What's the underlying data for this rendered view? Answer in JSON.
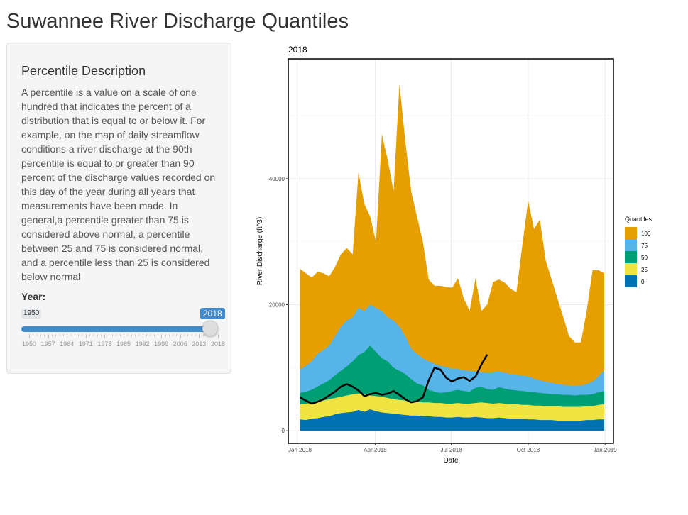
{
  "app": {
    "title": "Suwannee River Discharge Quantiles"
  },
  "sidebar": {
    "heading": "Percentile Description",
    "description": "A percentile is a value on a scale of one hundred that indicates the percent of a distribution that is equal to or below it. For example, on the map of daily streamflow conditions a river discharge at the 90th percentile is equal to or greater than 90 percent of the discharge values recorded on this day of the year during all years that measurements have been made. In general,a percentile greater than 75 is considered above normal, a percentile between 25 and 75 is considered normal, and a percentile less than 25 is considered below normal",
    "slider": {
      "label": "Year:",
      "min_label": "1950",
      "value_label": "2018",
      "ticks": [
        "1950",
        "1957",
        "1964",
        "1971",
        "1978",
        "1985",
        "1992",
        "1999",
        "2006",
        "2013",
        "2018"
      ]
    }
  },
  "chart_data": {
    "type": "area",
    "title": "2018",
    "xlabel": "Date",
    "ylabel": "River Discharge (ft^3)",
    "ylim": [
      -2000,
      59000
    ],
    "xlim": [
      "2017-12-18",
      "2019-01-11"
    ],
    "x_ticks": [
      "Jan 2018",
      "Apr 2018",
      "Jul 2018",
      "Oct 2018",
      "Jan 2019"
    ],
    "x_tick_dates": [
      "2018-01-01",
      "2018-04-01",
      "2018-07-01",
      "2018-10-01",
      "2019-01-01"
    ],
    "y_ticks": [
      0,
      20000,
      40000
    ],
    "y_tick_labels": [
      "0",
      "20000",
      "40000"
    ],
    "grid": true,
    "legend_title": "Quantiles",
    "legend_position": "right",
    "x": [
      "2018-01-01",
      "2018-01-08",
      "2018-01-15",
      "2018-01-22",
      "2018-01-29",
      "2018-02-05",
      "2018-02-12",
      "2018-02-19",
      "2018-02-26",
      "2018-03-05",
      "2018-03-12",
      "2018-03-19",
      "2018-03-26",
      "2018-04-02",
      "2018-04-09",
      "2018-04-16",
      "2018-04-23",
      "2018-04-30",
      "2018-05-07",
      "2018-05-14",
      "2018-05-21",
      "2018-05-28",
      "2018-06-04",
      "2018-06-11",
      "2018-06-18",
      "2018-06-25",
      "2018-07-02",
      "2018-07-09",
      "2018-07-16",
      "2018-07-23",
      "2018-07-30",
      "2018-08-06",
      "2018-08-13",
      "2018-08-20",
      "2018-08-27",
      "2018-09-03",
      "2018-09-10",
      "2018-09-17",
      "2018-09-24",
      "2018-10-01",
      "2018-10-08",
      "2018-10-15",
      "2018-10-22",
      "2018-10-29",
      "2018-11-05",
      "2018-11-12",
      "2018-11-19",
      "2018-11-26",
      "2018-12-03",
      "2018-12-10",
      "2018-12-17",
      "2018-12-24",
      "2018-12-31"
    ],
    "series": [
      {
        "name": "100",
        "color": "#E69F00",
        "values": [
          25700,
          25000,
          24300,
          25200,
          25000,
          24500,
          26000,
          28000,
          29000,
          28000,
          41000,
          36000,
          34000,
          30000,
          47000,
          43000,
          38000,
          55000,
          46000,
          38000,
          34000,
          30000,
          24000,
          23000,
          23000,
          22800,
          22700,
          24200,
          21000,
          19000,
          24200,
          19000,
          20000,
          23600,
          24000,
          23500,
          22500,
          22000,
          29500,
          36500,
          32000,
          33500,
          27000,
          24000,
          21000,
          18000,
          15000,
          14000,
          14000,
          19000,
          25500,
          25500,
          25000
        ]
      },
      {
        "name": "75",
        "color": "#56B4E9",
        "values": [
          9700,
          10300,
          11000,
          12200,
          12800,
          13500,
          15000,
          16500,
          17500,
          18000,
          19500,
          19000,
          20000,
          19500,
          19000,
          18000,
          17500,
          16500,
          15000,
          13000,
          12200,
          11500,
          11000,
          10600,
          10300,
          10100,
          9900,
          9800,
          9600,
          9500,
          9400,
          9300,
          9200,
          9300,
          9400,
          9200,
          9000,
          8900,
          8800,
          8600,
          8300,
          8000,
          7800,
          7600,
          7400,
          7300,
          7200,
          7100,
          7200,
          7400,
          7800,
          8600,
          9600
        ]
      },
      {
        "name": "50",
        "color": "#009E73",
        "values": [
          6000,
          6200,
          6500,
          7000,
          7500,
          8000,
          8800,
          9500,
          10200,
          11000,
          12000,
          12500,
          13500,
          12500,
          11500,
          11000,
          10000,
          9500,
          9000,
          8200,
          7500,
          7200,
          6500,
          6200,
          6000,
          6100,
          6300,
          6500,
          6300,
          6200,
          6800,
          7000,
          6600,
          6500,
          6900,
          6700,
          6500,
          6400,
          6300,
          6200,
          6100,
          6000,
          5900,
          5800,
          5800,
          5700,
          5700,
          5600,
          5700,
          5700,
          5800,
          6100,
          6300
        ]
      },
      {
        "name": "25",
        "color": "#F0E442",
        "values": [
          4200,
          4300,
          4400,
          4600,
          4800,
          5000,
          5200,
          5400,
          5600,
          5800,
          5900,
          5800,
          5600,
          5500,
          5400,
          5200,
          5000,
          4900,
          4800,
          4700,
          4600,
          4500,
          4500,
          4400,
          4400,
          4300,
          4300,
          4400,
          4300,
          4300,
          4400,
          4500,
          4400,
          4300,
          4400,
          4300,
          4200,
          4200,
          4100,
          4100,
          4000,
          4000,
          3900,
          3900,
          3900,
          3800,
          3800,
          3800,
          3800,
          3900,
          3900,
          4100,
          4200
        ]
      },
      {
        "name": "0",
        "color": "#0072B2",
        "values": [
          1800,
          1700,
          1900,
          2000,
          2200,
          2300,
          2600,
          2800,
          2900,
          3000,
          3300,
          3000,
          3400,
          3100,
          2900,
          2800,
          2700,
          2600,
          2500,
          2400,
          2400,
          2300,
          2300,
          2200,
          2200,
          2100,
          2100,
          2200,
          2100,
          2100,
          2200,
          2100,
          2000,
          2000,
          2100,
          2000,
          1900,
          1900,
          1900,
          1800,
          1800,
          1700,
          1700,
          1700,
          1600,
          1600,
          1600,
          1600,
          1600,
          1700,
          1700,
          1800,
          1800
        ]
      }
    ],
    "observed": {
      "color": "#000000",
      "x": [
        "2018-01-01",
        "2018-01-08",
        "2018-01-15",
        "2018-01-22",
        "2018-01-29",
        "2018-02-05",
        "2018-02-12",
        "2018-02-19",
        "2018-02-26",
        "2018-03-05",
        "2018-03-12",
        "2018-03-19",
        "2018-03-26",
        "2018-04-02",
        "2018-04-09",
        "2018-04-16",
        "2018-04-23",
        "2018-04-30",
        "2018-05-07",
        "2018-05-14",
        "2018-05-21",
        "2018-05-28",
        "2018-06-04",
        "2018-06-11",
        "2018-06-18",
        "2018-06-25",
        "2018-07-02",
        "2018-07-09",
        "2018-07-16",
        "2018-07-23",
        "2018-07-30",
        "2018-08-06",
        "2018-08-13"
      ],
      "values": [
        5300,
        4800,
        4300,
        4600,
        5000,
        5600,
        6200,
        7000,
        7400,
        7000,
        6400,
        5500,
        5800,
        6000,
        5700,
        5900,
        6300,
        5700,
        5000,
        4500,
        4700,
        5300,
        8000,
        10000,
        9700,
        8400,
        7800,
        8300,
        8500,
        7900,
        8600,
        10500,
        12100
      ]
    }
  }
}
